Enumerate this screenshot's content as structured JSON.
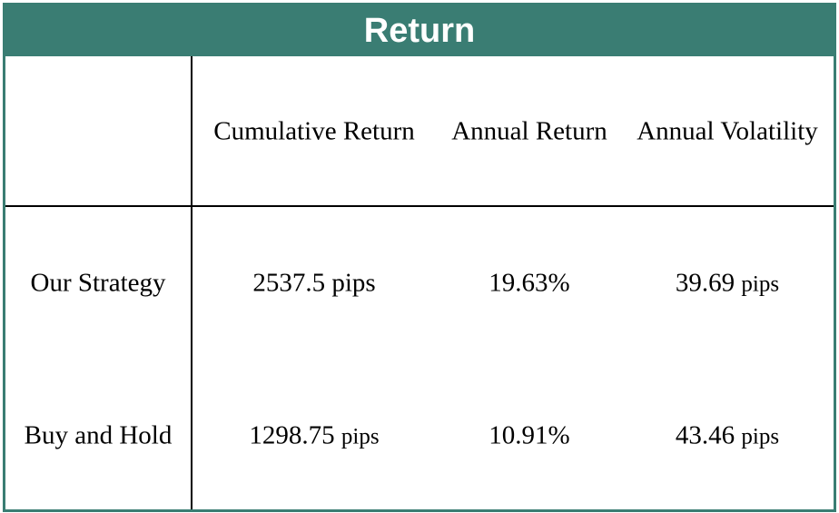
{
  "title": "Return",
  "columns": [
    "Cumulative Return",
    "Annual Return",
    "Annual Volatility"
  ],
  "rows": [
    {
      "label": "Our Strategy",
      "cumulative": {
        "num": "2537.5 pips",
        "unit": ""
      },
      "annual_return": "19.63%",
      "volatility": {
        "num": "39.69",
        "unit": "pips"
      }
    },
    {
      "label": "Buy and Hold",
      "cumulative": {
        "num": "1298.75",
        "unit": "pips"
      },
      "annual_return": "10.91%",
      "volatility": {
        "num": "43.46",
        "unit": "pips"
      }
    }
  ],
  "colors": {
    "accent": "#3a7d73",
    "lines": "#000000"
  }
}
